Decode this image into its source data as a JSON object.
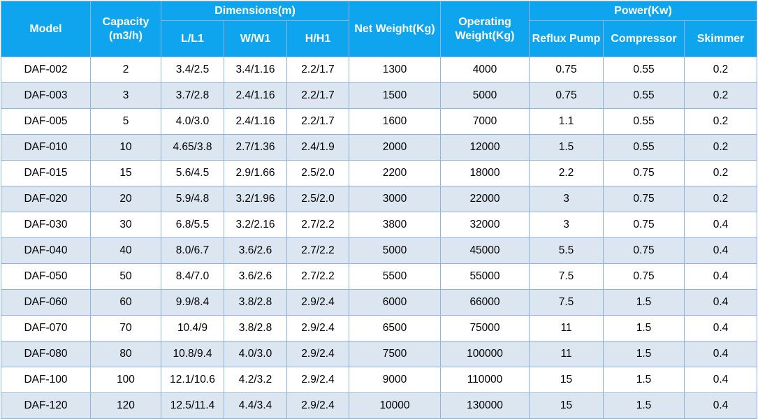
{
  "header": {
    "model": "Model",
    "capacity": "Capacity (m3/h)",
    "dimensions": "Dimensions(m)",
    "length": "L/L1",
    "width": "W/W1",
    "height": "H/H1",
    "net_weight": "Net Weight(Kg)",
    "operating_weight": "Operating Weight(Kg)",
    "power": "Power(Kw)",
    "reflux_pump": "Reflux Pump",
    "compressor": "Compressor",
    "skimmer": "Skimmer"
  },
  "rows": [
    [
      "DAF-002",
      "2",
      "3.4/2.5",
      "3.4/1.16",
      "2.2/1.7",
      "1300",
      "4000",
      "0.75",
      "0.55",
      "0.2"
    ],
    [
      "DAF-003",
      "3",
      "3.7/2.8",
      "2.4/1.16",
      "2.2/1.7",
      "1500",
      "5000",
      "0.75",
      "0.55",
      "0.2"
    ],
    [
      "DAF-005",
      "5",
      "4.0/3.0",
      "2.4/1.16",
      "2.2/1.7",
      "1600",
      "7000",
      "1.1",
      "0.55",
      "0.2"
    ],
    [
      "DAF-010",
      "10",
      "4.65/3.8",
      "2.7/1.36",
      "2.4/1.9",
      "2000",
      "12000",
      "1.5",
      "0.55",
      "0.2"
    ],
    [
      "DAF-015",
      "15",
      "5.6/4.5",
      "2.9/1.66",
      "2.5/2.0",
      "2200",
      "18000",
      "2.2",
      "0.75",
      "0.2"
    ],
    [
      "DAF-020",
      "20",
      "5.9/4.8",
      "3.2/1.96",
      "2.5/2.0",
      "3000",
      "22000",
      "3",
      "0.75",
      "0.2"
    ],
    [
      "DAF-030",
      "30",
      "6.8/5.5",
      "3.2/2.16",
      "2.7/2.2",
      "3800",
      "32000",
      "3",
      "0.75",
      "0.4"
    ],
    [
      "DAF-040",
      "40",
      "8.0/6.7",
      "3.6/2.6",
      "2.7/2.2",
      "5000",
      "45000",
      "5.5",
      "0.75",
      "0.4"
    ],
    [
      "DAF-050",
      "50",
      "8.4/7.0",
      "3.6/2.6",
      "2.7/2.2",
      "5500",
      "55000",
      "7.5",
      "0.75",
      "0.4"
    ],
    [
      "DAF-060",
      "60",
      "9.9/8.4",
      "3.8/2.8",
      "2.9/2.4",
      "6000",
      "66000",
      "7.5",
      "1.5",
      "0.4"
    ],
    [
      "DAF-070",
      "70",
      "10.4/9",
      "3.8/2.8",
      "2.9/2.4",
      "6500",
      "75000",
      "11",
      "1.5",
      "0.4"
    ],
    [
      "DAF-080",
      "80",
      "10.8/9.4",
      "4.0/3.0",
      "2.9/2.4",
      "7500",
      "100000",
      "11",
      "1.5",
      "0.4"
    ],
    [
      "DAF-100",
      "100",
      "12.1/10.6",
      "4.2/3.2",
      "2.9/2.4",
      "9000",
      "110000",
      "15",
      "1.5",
      "0.4"
    ],
    [
      "DAF-120",
      "120",
      "12.5/11.4",
      "4.4/3.4",
      "2.9/2.4",
      "10000",
      "130000",
      "15",
      "1.5",
      "0.4"
    ]
  ],
  "colors": {
    "header_bg": "#0fa5ee",
    "header_text": "#ffffff",
    "row_alt_bg": "#dce6f1",
    "grid_line": "#8fb3dc"
  }
}
